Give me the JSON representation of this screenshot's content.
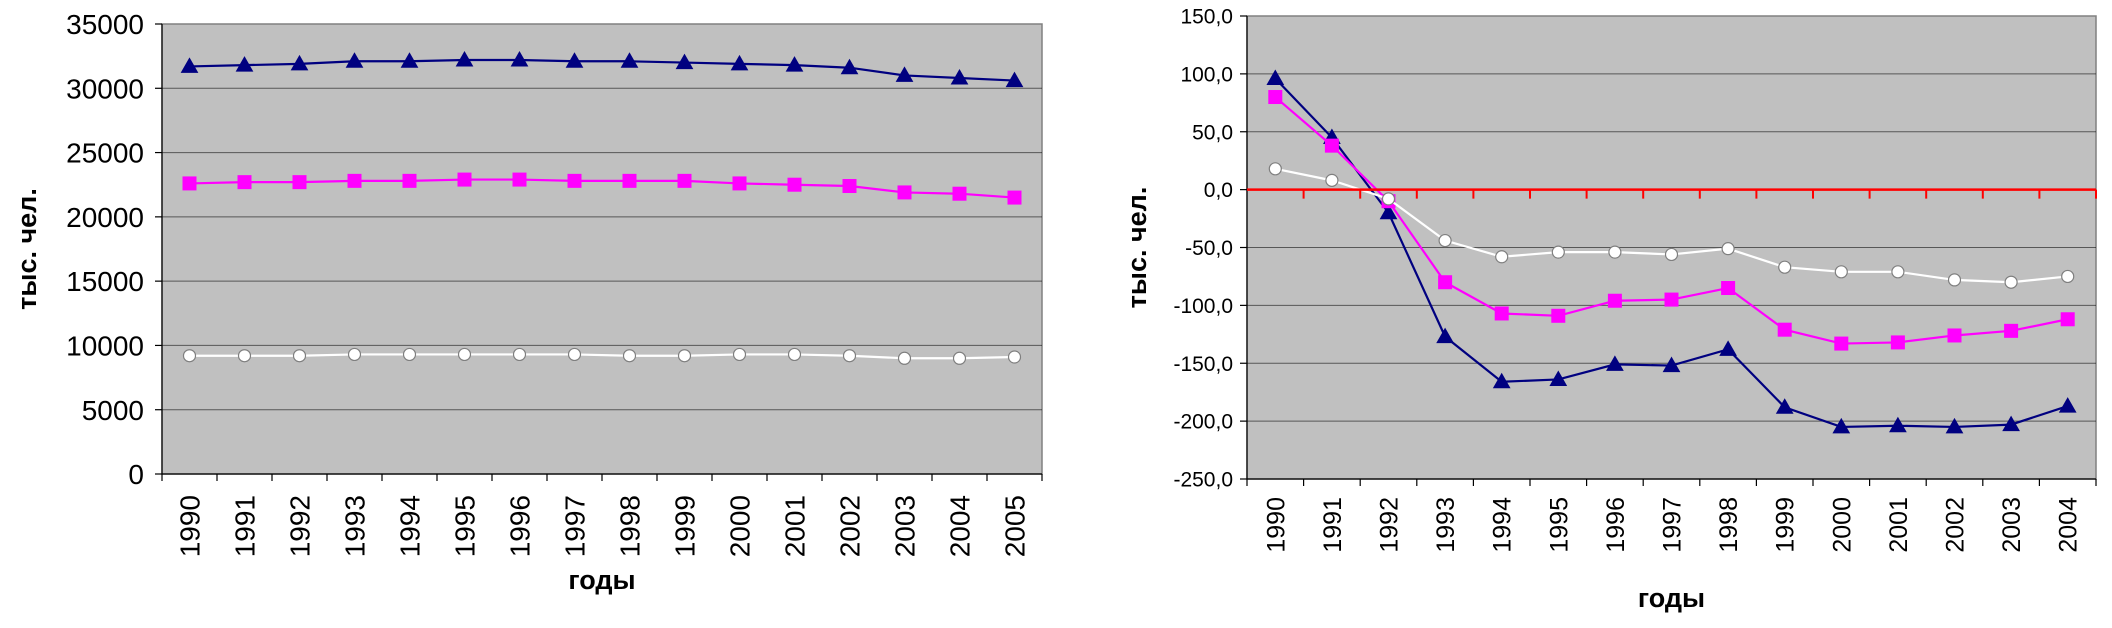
{
  "colors": {
    "plot_bg": "#C0C0C0",
    "grid": "#808080",
    "series_total": "#000080",
    "series_mid": "#FF00FF",
    "series_low": "#FFFFFF",
    "zero_line": "#FF0000"
  },
  "chart_data": [
    {
      "type": "line",
      "xlabel": "годы",
      "ylabel": "тыс. чел.",
      "ylim": [
        0,
        35000
      ],
      "yticks": [
        0,
        5000,
        10000,
        15000,
        20000,
        25000,
        30000,
        35000
      ],
      "ytick_labels": [
        "0",
        "5000",
        "10000",
        "15000",
        "20000",
        "25000",
        "30000",
        "35000"
      ],
      "categories": [
        "1990",
        "1991",
        "1992",
        "1993",
        "1994",
        "1995",
        "1996",
        "1997",
        "1998",
        "1999",
        "2000",
        "2001",
        "2002",
        "2003",
        "2004",
        "2005"
      ],
      "grid": true,
      "series": [
        {
          "color_key": "series_total",
          "marker": "triangle",
          "values": [
            31700,
            31800,
            31900,
            32100,
            32100,
            32200,
            32200,
            32100,
            32100,
            32000,
            31900,
            31800,
            31600,
            31000,
            30800,
            30600
          ]
        },
        {
          "color_key": "series_mid",
          "marker": "square",
          "values": [
            22600,
            22700,
            22700,
            22800,
            22800,
            22900,
            22900,
            22800,
            22800,
            22800,
            22600,
            22500,
            22400,
            21900,
            21800,
            21500
          ]
        },
        {
          "color_key": "series_low",
          "marker": "circle",
          "values": [
            9200,
            9200,
            9200,
            9300,
            9300,
            9300,
            9300,
            9300,
            9200,
            9200,
            9300,
            9300,
            9200,
            9000,
            9000,
            9100
          ]
        }
      ]
    },
    {
      "type": "line",
      "xlabel": "годы",
      "ylabel": "тыс. чел.",
      "ylim": [
        -250,
        150
      ],
      "yticks": [
        -250,
        -200,
        -150,
        -100,
        -50,
        0,
        50,
        100,
        150
      ],
      "ytick_labels": [
        "-250,0",
        "-200,0",
        "-150,0",
        "-100,0",
        "-50,0",
        "0,0",
        "50,0",
        "100,0",
        "150,0"
      ],
      "categories": [
        "1990",
        "1991",
        "1992",
        "1993",
        "1994",
        "1995",
        "1996",
        "1997",
        "1998",
        "1999",
        "2000",
        "2001",
        "2002",
        "2003",
        "2004"
      ],
      "grid": true,
      "zero_line": true,
      "series": [
        {
          "color_key": "series_total",
          "marker": "triangle",
          "values": [
            96,
            45,
            -20,
            -127,
            -166,
            -164,
            -151,
            -152,
            -138,
            -188,
            -205,
            -204,
            -205,
            -203,
            -187
          ]
        },
        {
          "color_key": "series_mid",
          "marker": "square",
          "values": [
            80,
            38,
            -10,
            -80,
            -107,
            -109,
            -96,
            -95,
            -85,
            -121,
            -133,
            -132,
            -126,
            -122,
            -112
          ]
        },
        {
          "color_key": "series_low",
          "marker": "circle",
          "values": [
            18,
            8,
            -8,
            -44,
            -58,
            -54,
            -54,
            -56,
            -51,
            -67,
            -71,
            -71,
            -78,
            -80,
            -75
          ]
        }
      ]
    }
  ]
}
